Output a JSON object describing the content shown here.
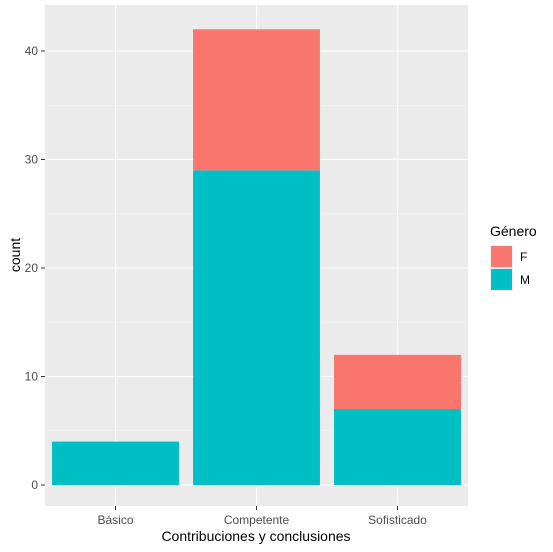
{
  "chart_data": {
    "type": "bar",
    "stacked": true,
    "categories": [
      "Básico",
      "Competente",
      "Sofisticado"
    ],
    "series": [
      {
        "name": "M",
        "color": "#00BFC4",
        "values": [
          4,
          29,
          7
        ]
      },
      {
        "name": "F",
        "color": "#F8766D",
        "values": [
          0,
          13,
          5
        ]
      }
    ],
    "xlabel": "Contribuciones y conclusiones",
    "ylabel": "count",
    "ylim": [
      0,
      44
    ],
    "yticks": [
      0,
      10,
      20,
      30,
      40
    ],
    "grid": true,
    "panel_background": "#EBEBEB",
    "legend": {
      "title": "Género",
      "position": "right",
      "entries": [
        {
          "label": "F",
          "color": "#F8766D"
        },
        {
          "label": "M",
          "color": "#00BFC4"
        }
      ]
    }
  }
}
